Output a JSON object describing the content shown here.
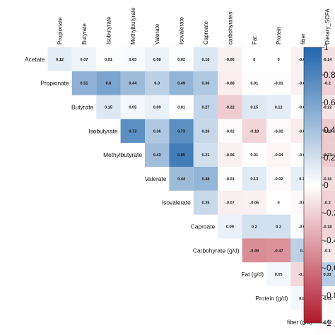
{
  "chart_data": {
    "type": "heatmap",
    "variables": [
      "Acetate",
      "Propionate",
      "Butyrate",
      "Isobutyrate",
      "Methylbutyrate",
      "Valerate",
      "Isovalerate",
      "Caproate",
      "carbohyrates",
      "Fat",
      "Protein",
      "fiber",
      "Dietary_SCFA"
    ],
    "row_labels": [
      "Acetate",
      "Propionate",
      "Butyrate",
      "Isobutyrate",
      "Methylbutyrate",
      "Valerate",
      "Isovalerate",
      "Caproate",
      "Carbohyrate (g/d)",
      "Fat (g/d)",
      "Protein (g/d)",
      "fiber (g/d)"
    ],
    "col_labels": [
      "Propionate",
      "Butyrate",
      "Isobutyrate",
      "Methylbutyrate",
      "Valerate",
      "Isovalerate",
      "Caproate",
      "carbohyrates",
      "Fat",
      "Protein",
      "fiber",
      "Dietary_SCFA"
    ],
    "values": [
      [
        "0.12",
        "0.07",
        "0.01",
        "0.03",
        "0.08",
        "0.02",
        "0.16",
        "-0.06",
        "0",
        "0",
        "-0.06",
        "-0.14"
      ],
      [
        null,
        "0.51",
        "0.6",
        "0.44",
        "0.3",
        "0.49",
        "0.36",
        "-0.08",
        "0.01",
        "-0.01",
        "-0.06",
        "-0.2"
      ],
      [
        null,
        null,
        "0.15",
        "0.05",
        "0.09",
        "0.01",
        "0.27",
        "-0.22",
        "0.15",
        "0.12",
        "-0.01",
        "-0.12"
      ],
      [
        null,
        null,
        null,
        "0.73",
        "0.36",
        "0.73",
        "0.26",
        "-0.02",
        "-0.18",
        "-0.02",
        "-0.08",
        "-0.23"
      ],
      [
        null,
        null,
        null,
        null,
        "0.43",
        "0.85",
        "0.21",
        "-0.06",
        "0.01",
        "-0.04",
        "-0.01",
        "-0.23"
      ],
      [
        null,
        null,
        null,
        null,
        null,
        "0.44",
        "0.48",
        "-0.01",
        "0.13",
        "-0.02",
        "0.11",
        "-0.16"
      ],
      [
        null,
        null,
        null,
        null,
        null,
        null,
        "0.25",
        "-0.07",
        "-0.06",
        "0",
        "-0.03",
        "-0.2"
      ],
      [
        null,
        null,
        null,
        null,
        null,
        null,
        null,
        "0.09",
        "0.2",
        "0.2",
        "-0.01",
        "-0.18"
      ],
      [
        null,
        null,
        null,
        null,
        null,
        null,
        null,
        null,
        "-0.49",
        "-0.47",
        "0.3",
        "-0.1"
      ],
      [
        null,
        null,
        null,
        null,
        null,
        null,
        null,
        null,
        null,
        "0.05",
        "-0.17",
        "0.33"
      ],
      [
        null,
        null,
        null,
        null,
        null,
        null,
        null,
        null,
        null,
        null,
        "0.05",
        "-0.02"
      ],
      [
        null,
        null,
        null,
        null,
        null,
        null,
        null,
        null,
        null,
        null,
        null,
        "-0.02"
      ]
    ],
    "color_scale": {
      "min": -1,
      "max": 1,
      "negative_color": "#b2182b",
      "neutral_color": "#ffffff",
      "positive_color": "#2166ac",
      "ticks": [
        "1",
        "0.8",
        "0.6",
        "0.4",
        "0.2",
        "0",
        "-0.2",
        "-0.4",
        "-0.6",
        "-0.8",
        "-1"
      ]
    },
    "colorbar_position": "right",
    "grid": false
  }
}
